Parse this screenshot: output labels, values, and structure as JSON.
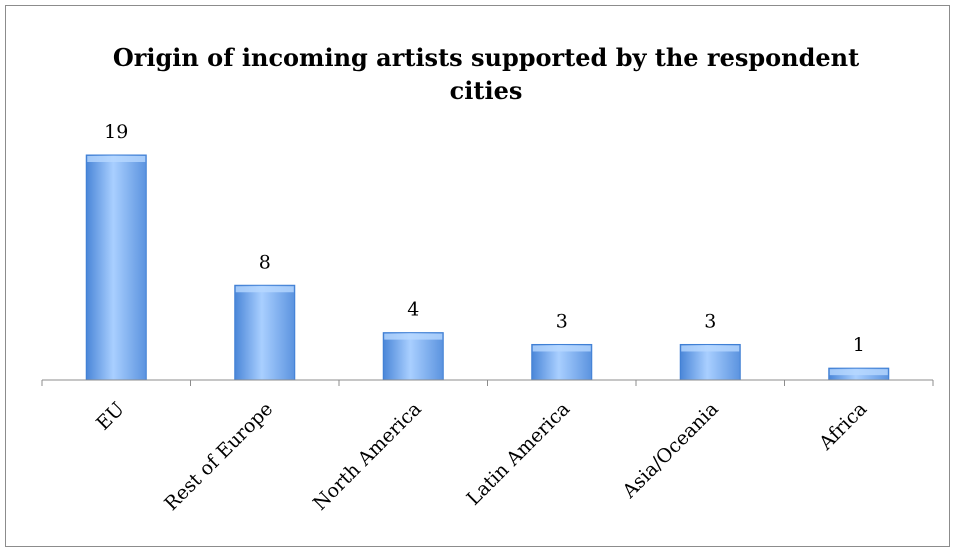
{
  "chart_data": {
    "type": "bar",
    "title_lines": [
      "Origin of incoming artists supported by the respondent",
      "cities"
    ],
    "categories": [
      "EU",
      "Rest of Europe",
      "North America",
      "Latin America",
      "Asia/Oceania",
      "Africa"
    ],
    "values": [
      19,
      8,
      4,
      3,
      3,
      1
    ],
    "data_labels": [
      "19",
      "8",
      "4",
      "3",
      "3",
      "1"
    ],
    "ylim": [
      0,
      19
    ],
    "grid": false,
    "legend": "none",
    "bar_color": "#6fa8ee",
    "bar_color_light": "#b8d8ff",
    "bar_color_dark": "#3f7fd4"
  }
}
